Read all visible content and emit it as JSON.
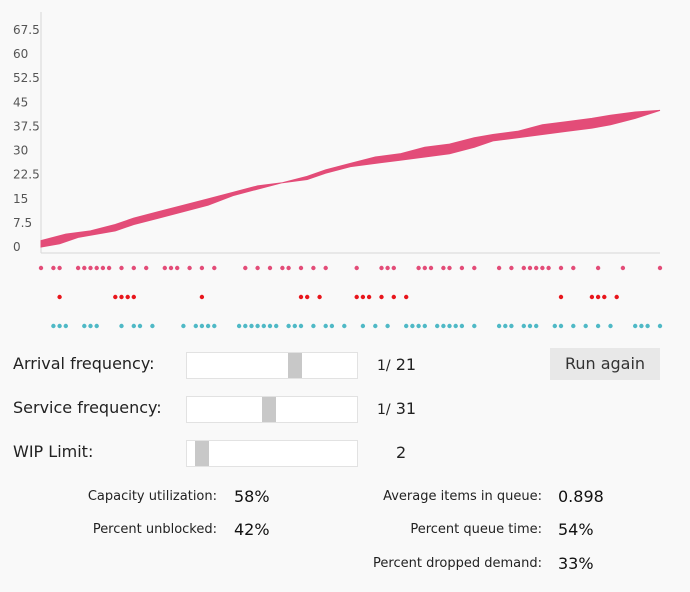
{
  "chart_data": {
    "type": "area",
    "yticks": [
      "67.5",
      "60",
      "52.5",
      "45",
      "37.5",
      "30",
      "22.5",
      "15",
      "7.5",
      "0"
    ],
    "ylim": [
      0,
      70
    ],
    "xlim": [
      0,
      100
    ],
    "arrivals_upper": [
      [
        0,
        2
      ],
      [
        2,
        3
      ],
      [
        4,
        4
      ],
      [
        8,
        5
      ],
      [
        12,
        7
      ],
      [
        15,
        9
      ],
      [
        19,
        11
      ],
      [
        23,
        13
      ],
      [
        27,
        15
      ],
      [
        31,
        17
      ],
      [
        35,
        19
      ],
      [
        39,
        20
      ],
      [
        43,
        22
      ],
      [
        46,
        24
      ],
      [
        50,
        26
      ],
      [
        54,
        28
      ],
      [
        58,
        29
      ],
      [
        62,
        31
      ],
      [
        66,
        32
      ],
      [
        70,
        34
      ],
      [
        73,
        35
      ],
      [
        77,
        36
      ],
      [
        81,
        38
      ],
      [
        85,
        39
      ],
      [
        89,
        40
      ],
      [
        92,
        41
      ],
      [
        96,
        42
      ],
      [
        100,
        42.5
      ]
    ],
    "arrivals_lower": [
      [
        0,
        0
      ],
      [
        3,
        1
      ],
      [
        6,
        3
      ],
      [
        9,
        4
      ],
      [
        12,
        5
      ],
      [
        15,
        7
      ],
      [
        19,
        9
      ],
      [
        23,
        11
      ],
      [
        27,
        13
      ],
      [
        31,
        16
      ],
      [
        35,
        18
      ],
      [
        39,
        20
      ],
      [
        43,
        21
      ],
      [
        46,
        23
      ],
      [
        50,
        25
      ],
      [
        54,
        26
      ],
      [
        58,
        27
      ],
      [
        62,
        28
      ],
      [
        66,
        29
      ],
      [
        70,
        31
      ],
      [
        73,
        33
      ],
      [
        77,
        34
      ],
      [
        81,
        35
      ],
      [
        85,
        36
      ],
      [
        89,
        37
      ],
      [
        92,
        38
      ],
      [
        96,
        40
      ],
      [
        100,
        42.5
      ]
    ],
    "colors": {
      "area": "#e34c78",
      "row1": "#e34c78",
      "row2": "#e8161c",
      "row3": "#4fb9c6",
      "axis": "#d8d8d8",
      "tick": "#555555"
    },
    "dot_rows": {
      "arrival": [
        0,
        2,
        3,
        6,
        7,
        8,
        9,
        10,
        11,
        13,
        15,
        17,
        20,
        21,
        22,
        24,
        26,
        28,
        33,
        35,
        37,
        39,
        40,
        42,
        44,
        46,
        51,
        55,
        56,
        57,
        61,
        62,
        63,
        65,
        66,
        68,
        70,
        74,
        76,
        78,
        79,
        80,
        81,
        82,
        84,
        86,
        90,
        94,
        100
      ],
      "service": [
        3,
        12,
        13,
        14,
        15,
        26,
        42,
        43,
        45,
        51,
        52,
        53,
        55,
        57,
        59,
        84,
        89,
        90,
        91,
        93
      ],
      "blocked": [
        2,
        3,
        4,
        7,
        8,
        9,
        13,
        15,
        16,
        18,
        23,
        25,
        26,
        27,
        28,
        32,
        33,
        34,
        35,
        36,
        37,
        38,
        40,
        41,
        42,
        44,
        46,
        47,
        49,
        52,
        54,
        56,
        59,
        60,
        61,
        62,
        64,
        65,
        66,
        67,
        68,
        70,
        74,
        75,
        76,
        78,
        79,
        80,
        83,
        84,
        86,
        88,
        90,
        92,
        96,
        97,
        98,
        100
      ]
    }
  },
  "controls": {
    "arrival": {
      "label": "Arrival frequency:",
      "prefix": "1/",
      "value": "21",
      "level": 0.65
    },
    "service": {
      "label": "Service frequency:",
      "prefix": "1/",
      "value": "31",
      "level": 0.48
    },
    "wip": {
      "label": "WIP Limit:",
      "value": "2",
      "level": 0.05
    }
  },
  "run_button": "Run again",
  "stats": {
    "capacity": {
      "label": "Capacity utilization:",
      "value": "58%"
    },
    "unblocked": {
      "label": "Percent unblocked:",
      "value": "42%"
    },
    "avg_queue": {
      "label": "Average items in queue:",
      "value": "0.898"
    },
    "queue_time": {
      "label": "Percent queue time:",
      "value": "54%"
    },
    "dropped": {
      "label": "Percent dropped demand:",
      "value": "33%"
    }
  }
}
